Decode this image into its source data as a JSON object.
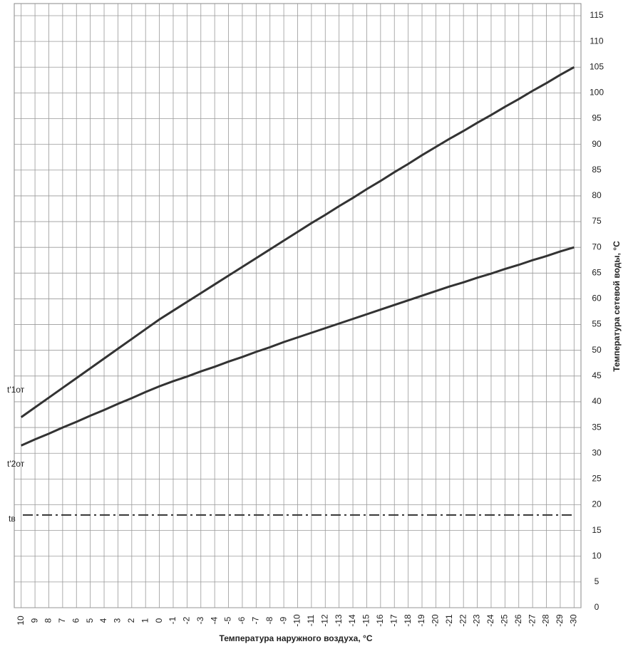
{
  "chart_data": {
    "type": "line",
    "x_label": "Температура наружного воздуха, °С",
    "y_label": "Температура сетевой воды, °С",
    "x": [
      10,
      9,
      8,
      7,
      6,
      5,
      4,
      3,
      2,
      1,
      0,
      -1,
      -2,
      -3,
      -4,
      -5,
      -6,
      -7,
      -8,
      -9,
      -10,
      -11,
      -12,
      -13,
      -14,
      -15,
      -16,
      -17,
      -18,
      -19,
      -20,
      -21,
      -22,
      -23,
      -24,
      -25,
      -26,
      -27,
      -28,
      -29,
      -30
    ],
    "xlim": [
      10.5,
      -30.5
    ],
    "ylim": [
      0,
      115
    ],
    "yticks": [
      0,
      5,
      10,
      15,
      20,
      25,
      30,
      35,
      40,
      45,
      50,
      55,
      60,
      65,
      70,
      75,
      80,
      85,
      90,
      95,
      100,
      105,
      110,
      115
    ],
    "grid": true,
    "series": [
      {
        "name": "t'1от",
        "color": "#333333",
        "values": [
          37,
          38.9,
          40.8,
          42.7,
          44.6,
          46.5,
          48.4,
          50.3,
          52.2,
          54.1,
          56,
          57.7,
          59.4,
          61.1,
          62.8,
          64.5,
          66.2,
          67.9,
          69.6,
          71.3,
          73,
          74.7,
          76.3,
          78,
          79.6,
          81.3,
          82.9,
          84.6,
          86.2,
          87.9,
          89.5,
          91.1,
          92.6,
          94.2,
          95.7,
          97.3,
          98.8,
          100.4,
          101.9,
          103.5,
          105
        ]
      },
      {
        "name": "t'2от",
        "color": "#333333",
        "values": [
          31.5,
          32.7,
          33.8,
          35,
          36.1,
          37.3,
          38.4,
          39.6,
          40.7,
          41.9,
          43,
          44,
          44.9,
          45.9,
          46.8,
          47.8,
          48.7,
          49.7,
          50.6,
          51.6,
          52.5,
          53.4,
          54.3,
          55.2,
          56.1,
          57,
          57.9,
          58.8,
          59.7,
          60.6,
          61.5,
          62.4,
          63.2,
          64.1,
          64.9,
          65.8,
          66.6,
          67.5,
          68.3,
          69.2,
          70
        ]
      }
    ],
    "reference_line": {
      "value": 18,
      "label": "tв",
      "color": "#333333"
    }
  }
}
